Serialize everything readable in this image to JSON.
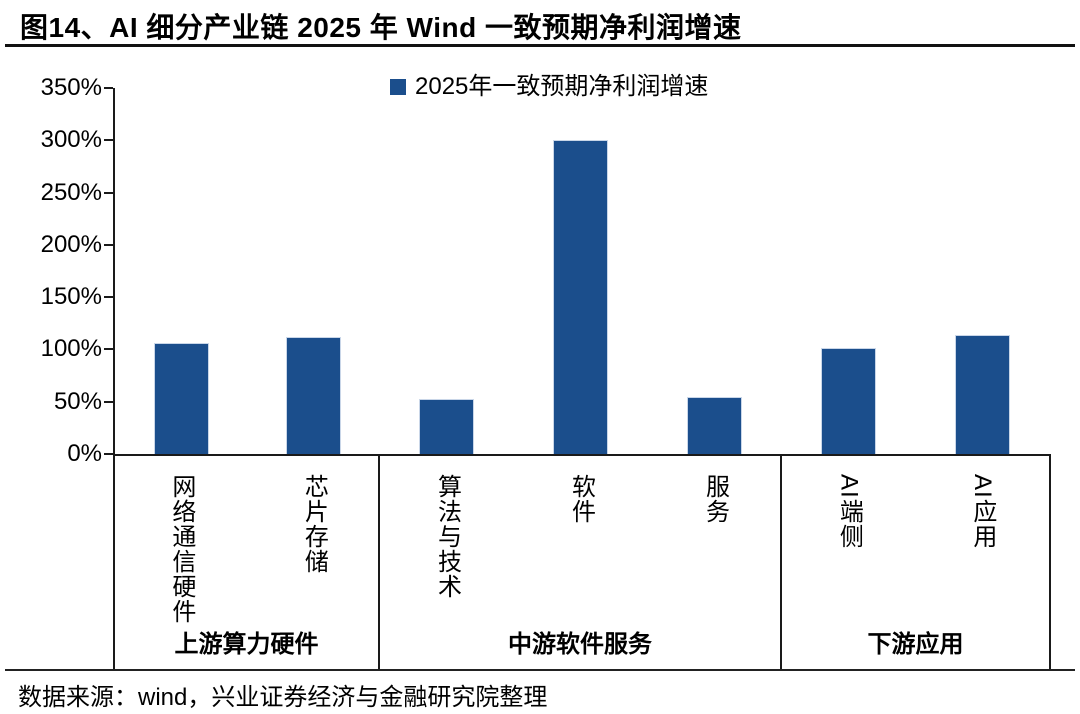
{
  "title": "图14、AI 细分产业链 2025 年 Wind 一致预期净利润增速",
  "source": "数据来源：wind，兴业证券经济与金融研究院整理",
  "legend": {
    "label": "2025年一致预期净利润增速"
  },
  "colors": {
    "bar": "#1B4E8C",
    "bar_edge": "#c9d6e8",
    "axis": "#1a1a1a",
    "text": "#000000"
  },
  "chart_data": {
    "type": "bar",
    "title": "图14、AI 细分产业链 2025 年 Wind 一致预期净利润增速",
    "xlabel": "",
    "ylabel": "",
    "ylim": [
      0,
      350
    ],
    "ytick_step": 50,
    "ytick_suffix": "%",
    "ytick_labels": [
      "0%",
      "50%",
      "100%",
      "150%",
      "200%",
      "250%",
      "300%",
      "350%"
    ],
    "grid": false,
    "legend_entries": [
      "2025年一致预期净利润增速"
    ],
    "legend_position": "top-center",
    "categories": [
      "网络通信硬件",
      "芯片存储",
      "算法与技术",
      "软件",
      "服务",
      "AI端侧",
      "AI应用"
    ],
    "values": [
      106,
      112,
      53,
      300,
      55,
      101,
      114
    ],
    "groups": [
      {
        "label": "上游算力硬件",
        "width_frac": 0.2837,
        "categories": [
          "网络通信硬件",
          "芯片存储"
        ],
        "values": [
          106,
          112
        ]
      },
      {
        "label": "中游软件服务",
        "width_frac": 0.4304,
        "categories": [
          "算法与技术",
          "软件",
          "服务"
        ],
        "values": [
          53,
          300,
          55
        ]
      },
      {
        "label": "下游应用",
        "width_frac": 0.2859,
        "categories": [
          "AI端侧",
          "AI应用"
        ],
        "values": [
          101,
          114
        ]
      }
    ]
  }
}
